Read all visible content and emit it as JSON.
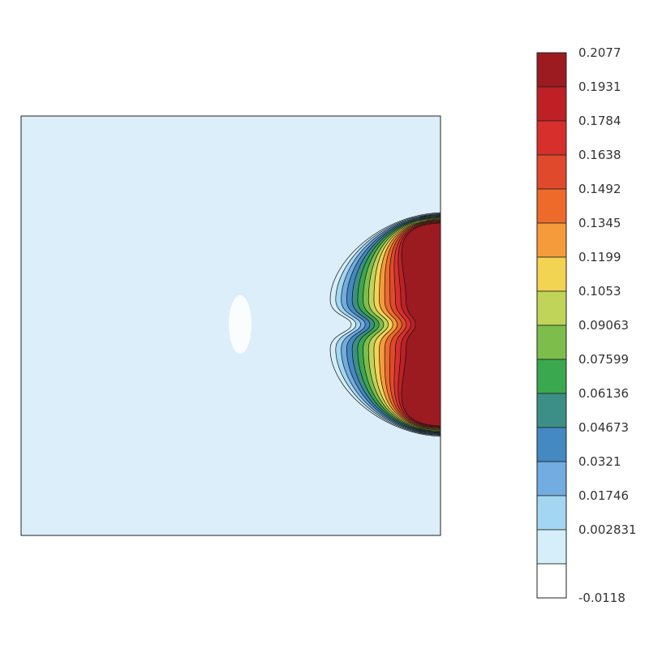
{
  "chart_data": {
    "type": "heatmap",
    "title": "",
    "xlabel": "",
    "ylabel": "",
    "colorbar": {
      "orientation": "vertical",
      "placement": "right",
      "min": -0.0118,
      "max": 0.2077,
      "levels": [
        "0.2077",
        "0.1931",
        "0.1784",
        "0.1638",
        "0.1492",
        "0.1345",
        "0.1199",
        "0.1053",
        "0.09063",
        "0.07599",
        "0.06136",
        "0.04673",
        "0.0321",
        "0.01746",
        "0.002831",
        "-0.0118"
      ],
      "colors": [
        "#9b1b20",
        "#be2026",
        "#d7302c",
        "#e0492b",
        "#ee6a2b",
        "#f69b3c",
        "#f3d352",
        "#c0d45a",
        "#7dbd4b",
        "#3aa84e",
        "#3c8f86",
        "#4489c2",
        "#72ace0",
        "#a3d7f1",
        "#d6eef9",
        "#ffffff"
      ]
    },
    "field": {
      "background_value": 0.0,
      "x_range": [
        0,
        1
      ],
      "y_range": [
        0,
        1
      ],
      "blob": {
        "description_free": true,
        "max_value": 0.2077,
        "min_value": -0.0118
      }
    },
    "contours": true,
    "grid": false,
    "frame": true
  }
}
